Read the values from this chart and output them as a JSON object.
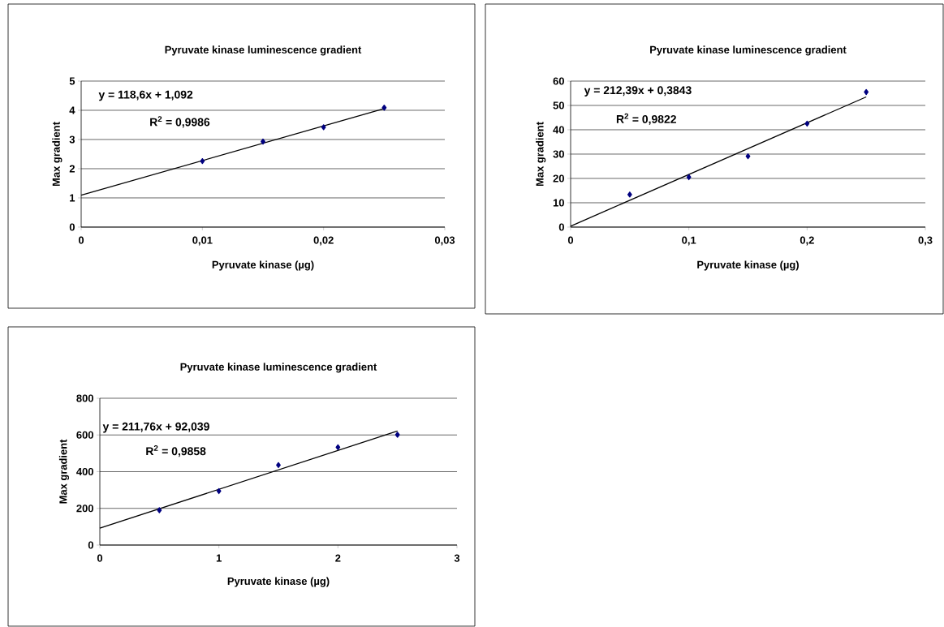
{
  "chart_data": [
    {
      "type": "scatter",
      "title": "Pyruvate kinase luminescence gradient",
      "xlabel": "Pyruvate kinase (µg)",
      "ylabel": "Max gradient",
      "series": [
        {
          "type": "scatter",
          "color": "#000080",
          "marker": "diamond",
          "x": [
            0.01,
            0.015,
            0.02,
            0.025
          ],
          "values": [
            2.26,
            2.93,
            3.42,
            4.09
          ]
        },
        {
          "type": "line",
          "color": "#000000",
          "marker": "none",
          "x": [
            0,
            0.025
          ],
          "values": [
            1.09,
            4.06
          ]
        }
      ],
      "xlim": [
        0,
        0.03
      ],
      "xticks": [
        0,
        {
          "value": 0.01,
          "label": "0,01"
        },
        {
          "value": 0.02,
          "label": "0,02"
        },
        {
          "value": 0.03,
          "label": "0,03"
        }
      ],
      "ylim": [
        0,
        5
      ],
      "yticks": [
        0,
        1,
        2,
        3,
        4,
        5
      ],
      "grid": "y",
      "annotations": [
        "y = 118,6x + 1,092",
        "R$^{2}$ = 0,9986"
      ]
    },
    {
      "type": "scatter",
      "title": "Pyruvate kinase luminescence gradient",
      "xlabel": "Pyruvate kinase (µg)",
      "ylabel": "Max gradient",
      "series": [
        {
          "type": "scatter",
          "color": "#000080",
          "marker": "diamond",
          "x": [
            0.05,
            0.1,
            0.15,
            0.2,
            0.25
          ],
          "values": [
            13.4,
            20.5,
            29.1,
            42.5,
            55.5
          ]
        },
        {
          "type": "line",
          "color": "#000000",
          "marker": "none",
          "x": [
            0,
            0.25
          ],
          "values": [
            0.4,
            53.5
          ]
        }
      ],
      "xlim": [
        0,
        0.3
      ],
      "xticks": [
        0,
        {
          "value": 0.1,
          "label": "0,1"
        },
        {
          "value": 0.2,
          "label": "0,2"
        },
        {
          "value": 0.3,
          "label": "0,3"
        }
      ],
      "ylim": [
        0,
        60
      ],
      "yticks": [
        0,
        10,
        20,
        30,
        40,
        50,
        60
      ],
      "grid": "y",
      "annotations": [
        "y = 212,39x + 0,3843",
        "R$^{2}$ = 0,9822"
      ]
    },
    {
      "type": "scatter",
      "title": "Pyruvate kinase luminescence gradient",
      "xlabel": "Pyruvate kinase (µg)",
      "ylabel": "Max gradient",
      "series": [
        {
          "type": "scatter",
          "color": "#000080",
          "marker": "diamond",
          "x": [
            0.5,
            1,
            1.5,
            2,
            2.5
          ],
          "values": [
            190,
            294,
            436,
            533,
            601
          ]
        },
        {
          "type": "line",
          "color": "#000000",
          "marker": "none",
          "x": [
            0,
            2.5
          ],
          "values": [
            92,
            621
          ]
        }
      ],
      "xlim": [
        0,
        3
      ],
      "xticks": [
        0,
        1,
        2,
        3
      ],
      "ylim": [
        0,
        800
      ],
      "yticks": [
        0,
        200,
        400,
        600,
        800
      ],
      "grid": "y",
      "annotations": [
        "y = 211,76x + 92,039",
        "R$^{2}$ = 0,9858"
      ]
    }
  ]
}
